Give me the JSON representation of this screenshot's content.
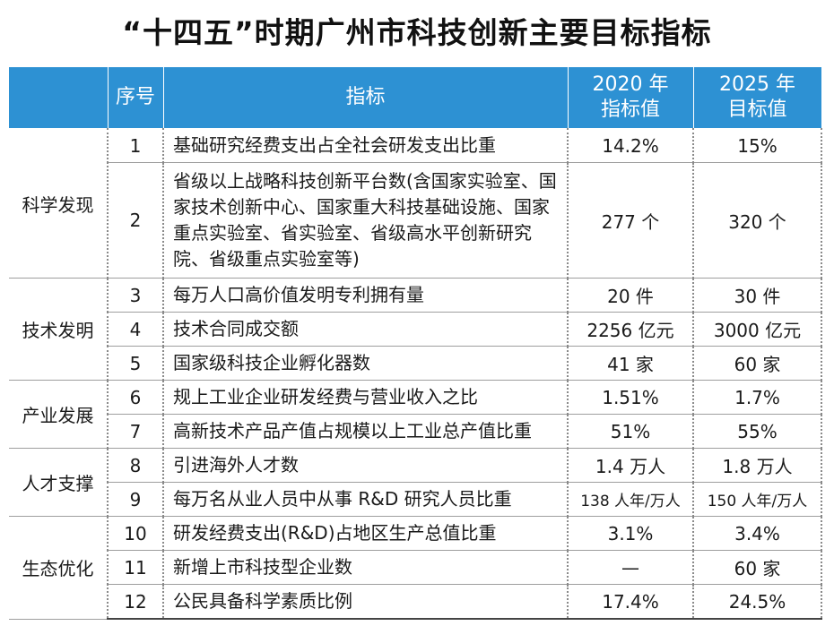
{
  "title": "“十四五”时期广州市科技创新主要目标指标",
  "headers": {
    "category": "",
    "seq": "序号",
    "indicator": "指标",
    "v2020_line1": "2020 年",
    "v2020_line2": "指标值",
    "v2025_line1": "2025 年",
    "v2025_line2": "目标值"
  },
  "categories": {
    "c1": "科学发现",
    "c2": "技术发明",
    "c3": "产业发展",
    "c4": "人才支撑",
    "c5": "生态优化"
  },
  "rows": [
    {
      "seq": "1",
      "indicator": "基础研究经费支出占全社会研发支出比重",
      "v2020": "14.2%",
      "v2025": "15%"
    },
    {
      "seq": "2",
      "indicator": "省级以上战略科技创新平台数(含国家实验室、国家技术创新中心、国家重大科技基础设施、国家重点实验室、省实验室、省级高水平创新研究院、省级重点实验室等)",
      "v2020": "277 个",
      "v2025": "320 个"
    },
    {
      "seq": "3",
      "indicator": "每万人口高价值发明专利拥有量",
      "v2020": "20 件",
      "v2025": "30 件"
    },
    {
      "seq": "4",
      "indicator": "技术合同成交额",
      "v2020": "2256 亿元",
      "v2025": "3000 亿元"
    },
    {
      "seq": "5",
      "indicator": "国家级科技企业孵化器数",
      "v2020": "41 家",
      "v2025": "60 家"
    },
    {
      "seq": "6",
      "indicator": "规上工业企业研发经费与营业收入之比",
      "v2020": "1.51%",
      "v2025": "1.7%"
    },
    {
      "seq": "7",
      "indicator": "高新技术产品产值占规模以上工业总产值比重",
      "v2020": "51%",
      "v2025": "55%"
    },
    {
      "seq": "8",
      "indicator": "引进海外人才数",
      "v2020": "1.4 万人",
      "v2025": "1.8 万人"
    },
    {
      "seq": "9",
      "indicator": "每万名从业人员中从事 R&D 研究人员比重",
      "v2020": "138 人年/万人",
      "v2025": "150 人年/万人"
    },
    {
      "seq": "10",
      "indicator": "研发经费支出(R&D)占地区生产总值比重",
      "v2020": "3.1%",
      "v2025": "3.4%"
    },
    {
      "seq": "11",
      "indicator": "新增上市科技型企业数",
      "v2020": "—",
      "v2025": "60 家"
    },
    {
      "seq": "12",
      "indicator": "公民具备科学素质比例",
      "v2020": "17.4%",
      "v2025": "24.5%"
    }
  ],
  "colors": {
    "header_bg": "#2d91d3",
    "header_text": "#ffffff"
  }
}
